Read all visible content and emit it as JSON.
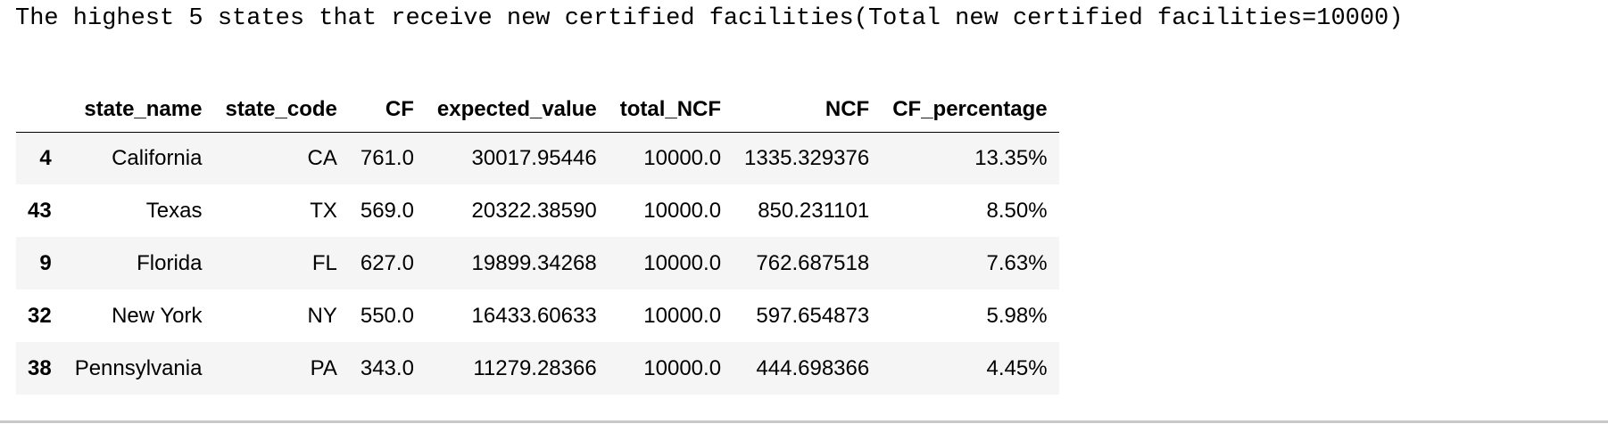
{
  "output": {
    "title": "The highest 5 states that receive new certified facilities(Total new certified facilities=10000)"
  },
  "table": {
    "columns": [
      "",
      "state_name",
      "state_code",
      "CF",
      "expected_value",
      "total_NCF",
      "NCF",
      "CF_percentage"
    ],
    "rows": [
      {
        "index": "4",
        "state_name": "California",
        "state_code": "CA",
        "CF": "761.0",
        "expected_value": "30017.95446",
        "total_NCF": "10000.0",
        "NCF": "1335.329376",
        "CF_percentage": "13.35%"
      },
      {
        "index": "43",
        "state_name": "Texas",
        "state_code": "TX",
        "CF": "569.0",
        "expected_value": "20322.38590",
        "total_NCF": "10000.0",
        "NCF": "850.231101",
        "CF_percentage": "8.50%"
      },
      {
        "index": "9",
        "state_name": "Florida",
        "state_code": "FL",
        "CF": "627.0",
        "expected_value": "19899.34268",
        "total_NCF": "10000.0",
        "NCF": "762.687518",
        "CF_percentage": "7.63%"
      },
      {
        "index": "32",
        "state_name": "New York",
        "state_code": "NY",
        "CF": "550.0",
        "expected_value": "16433.60633",
        "total_NCF": "10000.0",
        "NCF": "597.654873",
        "CF_percentage": "5.98%"
      },
      {
        "index": "38",
        "state_name": "Pennsylvania",
        "state_code": "PA",
        "CF": "343.0",
        "expected_value": "11279.28366",
        "total_NCF": "10000.0",
        "NCF": "444.698366",
        "CF_percentage": "4.45%"
      }
    ]
  },
  "colors": {
    "stripe": "#f5f5f5",
    "header_rule": "#000000",
    "bottom_rule": "#c8c8c8"
  }
}
